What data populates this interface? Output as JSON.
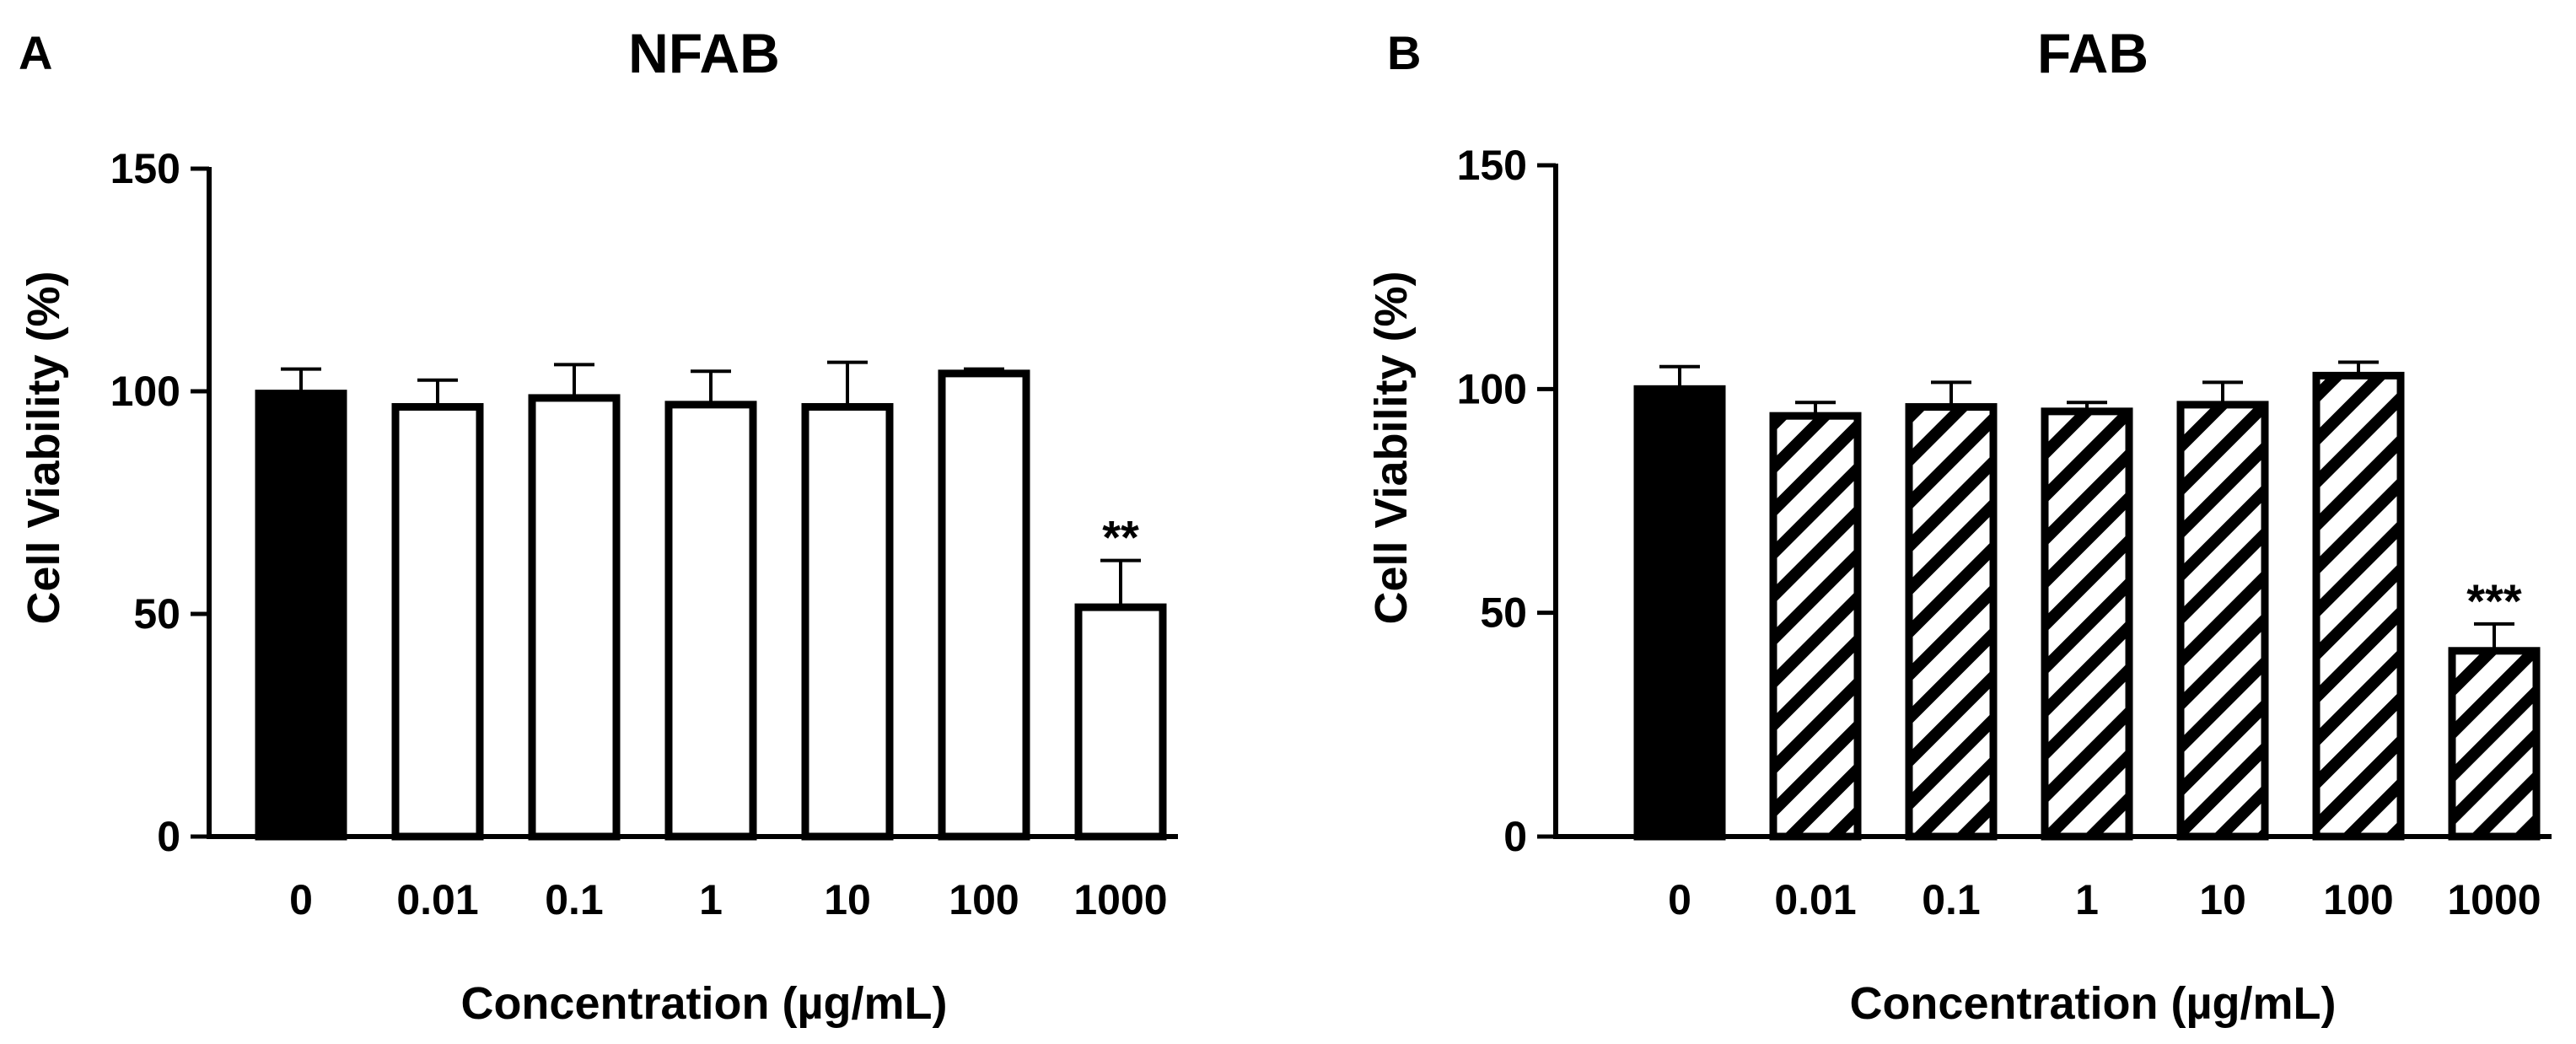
{
  "chart_data": [
    {
      "panel": "A",
      "type": "bar",
      "title": "NFAB",
      "xlabel": "Concentration (µg/mL)",
      "ylabel": "Cell Viability (%)",
      "ylim": [
        0,
        150
      ],
      "yticks": [
        0,
        50,
        100,
        150
      ],
      "categories": [
        "0",
        "0.01",
        "0.1",
        "1",
        "10",
        "100",
        "1000"
      ],
      "values": [
        99.5,
        96.5,
        98.5,
        97,
        96.5,
        104,
        51.5
      ],
      "errors": [
        5.5,
        6,
        7.5,
        7.5,
        10,
        1,
        10.5
      ],
      "fills": [
        "solid",
        "open",
        "open",
        "open",
        "open",
        "open",
        "open"
      ],
      "annotations": [
        {
          "category": "1000",
          "text": "**"
        }
      ]
    },
    {
      "panel": "B",
      "type": "bar",
      "title": "FAB",
      "xlabel": "Concentration (µg/mL)",
      "ylabel": "Cell Viability (%)",
      "ylim": [
        0,
        150
      ],
      "yticks": [
        0,
        50,
        100,
        150
      ],
      "categories": [
        "0",
        "0.01",
        "0.1",
        "1",
        "10",
        "100",
        "1000"
      ],
      "values": [
        100,
        94,
        96,
        95,
        96.5,
        103,
        41.5
      ],
      "errors": [
        5,
        3,
        5.5,
        2,
        5,
        3,
        6
      ],
      "fills": [
        "solid",
        "hatched",
        "hatched",
        "hatched",
        "hatched",
        "hatched",
        "hatched"
      ],
      "annotations": [
        {
          "category": "1000",
          "text": "***"
        }
      ]
    }
  ]
}
